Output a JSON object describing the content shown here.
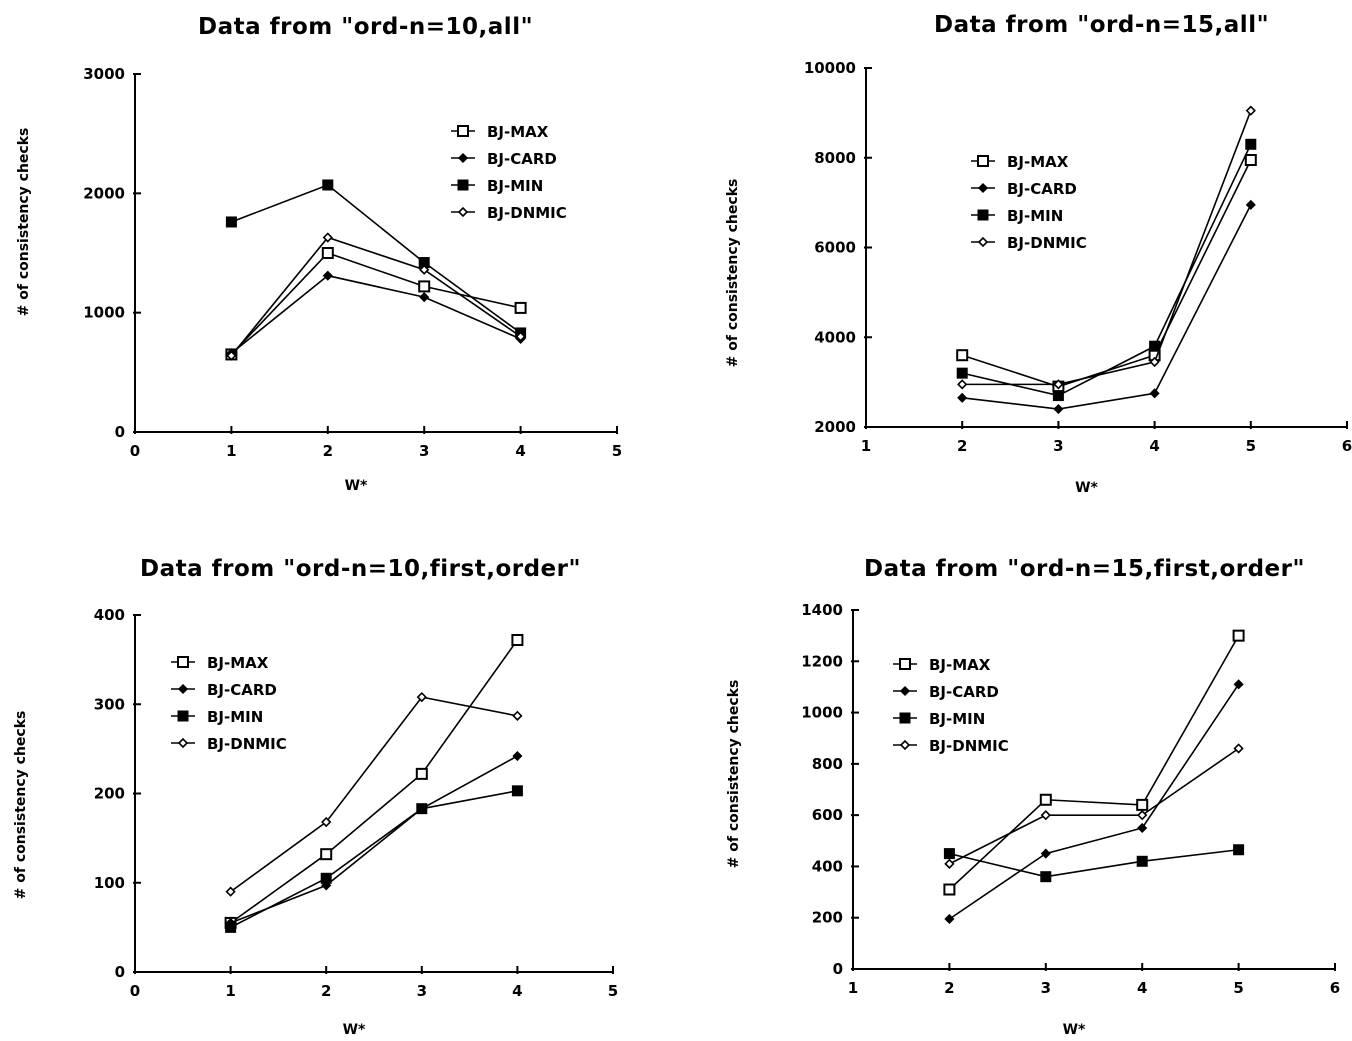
{
  "chart_data": [
    {
      "type": "line",
      "title": "Data from \"ord-n=10,all\"",
      "xlabel": "W*",
      "ylabel": "# of consistency checks",
      "xlim": [
        0,
        5
      ],
      "ylim": [
        0,
        3000
      ],
      "xticks": [
        0,
        1,
        2,
        3,
        4,
        5
      ],
      "yticks": [
        0,
        1000,
        2000,
        3000
      ],
      "legend_position": "top-right",
      "x": [
        1,
        2,
        3,
        4
      ],
      "series": [
        {
          "name": "BJ-MAX",
          "marker": "open-square",
          "values": [
            650,
            1500,
            1220,
            1040
          ]
        },
        {
          "name": "BJ-CARD",
          "marker": "plus",
          "values": [
            660,
            1310,
            1130,
            780
          ]
        },
        {
          "name": "BJ-MIN",
          "marker": "filled-square",
          "values": [
            1760,
            2070,
            1420,
            830
          ]
        },
        {
          "name": "BJ-DNMIC",
          "marker": "open-diamond",
          "values": [
            640,
            1630,
            1360,
            800
          ]
        }
      ]
    },
    {
      "type": "line",
      "title": "Data from \"ord-n=15,all\"",
      "xlabel": "W*",
      "ylabel": "# of consistency checks",
      "xlim": [
        1,
        6
      ],
      "ylim": [
        2000,
        10000
      ],
      "xticks": [
        1,
        2,
        3,
        4,
        5,
        6
      ],
      "yticks": [
        2000,
        4000,
        6000,
        8000,
        10000
      ],
      "legend_position": "top-left",
      "x": [
        2,
        3,
        4,
        5
      ],
      "series": [
        {
          "name": "BJ-MAX",
          "marker": "open-square",
          "values": [
            3600,
            2900,
            3600,
            7950
          ]
        },
        {
          "name": "BJ-CARD",
          "marker": "plus",
          "values": [
            2650,
            2400,
            2750,
            6950
          ]
        },
        {
          "name": "BJ-MIN",
          "marker": "filled-square",
          "values": [
            3200,
            2700,
            3800,
            8300
          ]
        },
        {
          "name": "BJ-DNMIC",
          "marker": "open-diamond",
          "values": [
            2950,
            2950,
            3450,
            9050
          ]
        }
      ]
    },
    {
      "type": "line",
      "title": "Data from \"ord-n=10,first,order\"",
      "xlabel": "W*",
      "ylabel": "# of consistency checks",
      "xlim": [
        0,
        5
      ],
      "ylim": [
        0,
        400
      ],
      "xticks": [
        0,
        1,
        2,
        3,
        4,
        5
      ],
      "yticks": [
        0,
        100,
        200,
        300,
        400
      ],
      "legend_position": "top-left",
      "x": [
        1,
        2,
        3,
        4
      ],
      "series": [
        {
          "name": "BJ-MAX",
          "marker": "open-square",
          "values": [
            55,
            132,
            222,
            372
          ]
        },
        {
          "name": "BJ-CARD",
          "marker": "plus",
          "values": [
            55,
            97,
            183,
            242
          ]
        },
        {
          "name": "BJ-MIN",
          "marker": "filled-square",
          "values": [
            50,
            105,
            183,
            203
          ]
        },
        {
          "name": "BJ-DNMIC",
          "marker": "open-diamond",
          "values": [
            90,
            168,
            308,
            287
          ]
        }
      ]
    },
    {
      "type": "line",
      "title": "Data from \"ord-n=15,first,order\"",
      "xlabel": "W*",
      "ylabel": "# of consistency checks",
      "xlim": [
        1,
        6
      ],
      "ylim": [
        0,
        1400
      ],
      "xticks": [
        1,
        2,
        3,
        4,
        5,
        6
      ],
      "yticks": [
        0,
        200,
        400,
        600,
        800,
        1000,
        1200,
        1400
      ],
      "legend_position": "top-left",
      "x": [
        2,
        3,
        4,
        5
      ],
      "series": [
        {
          "name": "BJ-MAX",
          "marker": "open-square",
          "values": [
            310,
            660,
            640,
            1300
          ]
        },
        {
          "name": "BJ-CARD",
          "marker": "plus",
          "values": [
            195,
            450,
            550,
            1110
          ]
        },
        {
          "name": "BJ-MIN",
          "marker": "filled-square",
          "values": [
            450,
            360,
            420,
            465
          ]
        },
        {
          "name": "BJ-DNMIC",
          "marker": "open-diamond",
          "values": [
            410,
            600,
            600,
            860
          ]
        }
      ]
    }
  ]
}
